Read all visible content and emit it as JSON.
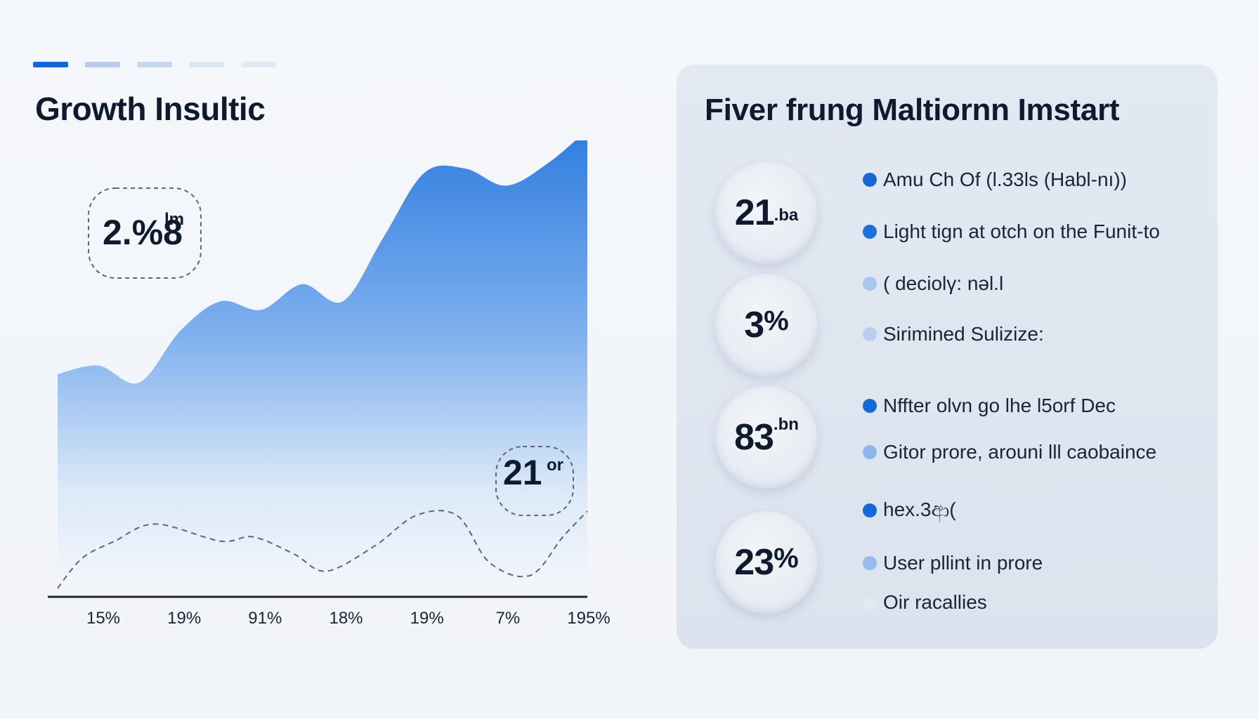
{
  "nav": {
    "tabs": [
      {
        "label": "",
        "state": "active"
      },
      {
        "label": "",
        "state": "inactive"
      },
      {
        "label": "",
        "state": "inactive"
      },
      {
        "label": "",
        "state": "inactive"
      },
      {
        "label": "",
        "state": "inactive"
      }
    ]
  },
  "left": {
    "title": "Growth Insultic"
  },
  "chart_data": {
    "type": "area",
    "title": "Growth Insultic",
    "xlabel": "",
    "ylabel": "",
    "categories": [
      "15%",
      "19%",
      "91%",
      "18%",
      "19%",
      "7%",
      "195%"
    ],
    "ylim": [
      0,
      100
    ],
    "grid": false,
    "colors": {
      "area_top": "#2f7de0",
      "area_bottom": "#f2f6fb",
      "line": "#5e6675",
      "axis": "#1c2438"
    },
    "series": [
      {
        "kind": "area",
        "x": [
          0,
          0.5,
          1,
          1.5,
          2,
          2.5,
          3,
          3.5,
          4,
          4.5,
          5,
          5.5,
          6,
          6.5
        ],
        "values": [
          52,
          54,
          50,
          62,
          69,
          67,
          73,
          69,
          84,
          99,
          100,
          96,
          101,
          109
        ]
      },
      {
        "kind": "dashed-line",
        "x": [
          0,
          0.3,
          0.7,
          1.2,
          2,
          2.4,
          2.9,
          3.3,
          3.9,
          4.4,
          4.9,
          5.3,
          5.8,
          6.2,
          6.5
        ],
        "values": [
          2,
          9,
          13,
          17,
          13,
          14,
          10,
          6,
          12,
          19,
          19,
          8,
          5,
          14,
          20
        ]
      }
    ],
    "annotations": [
      {
        "value": "2.%8",
        "suffix": "lm",
        "style": "dashed-badge"
      },
      {
        "value": "21",
        "suffix": "or",
        "style": "dashed-badge"
      }
    ]
  },
  "panel": {
    "title": "Fiver frung Maltiornn Imstart",
    "stats": [
      {
        "value": "21",
        "unit": ".ba",
        "unit_pos": "sub"
      },
      {
        "value": "3",
        "unit": "%",
        "unit_pos": "pct"
      },
      {
        "value": "83",
        "unit": ".bn",
        "unit_pos": "sup"
      },
      {
        "value": "23",
        "unit": "%",
        "unit_pos": "pct"
      }
    ],
    "bullets": [
      {
        "text": "Amu Ch Of (l.33ls (Habl-nı))",
        "color": "#1668d8"
      },
      {
        "text": "Light tign at otch on the Funit-to",
        "color": "#1d6fdc"
      },
      {
        "text": "( deciolγ: nəl.l",
        "color": "#a9c6ee"
      },
      {
        "text": "Sirimined Sulizize:",
        "color": "#b7cff0"
      },
      {
        "text": "Nffter olvn go lhe l5orf Dec",
        "color": "#1668d8"
      },
      {
        "text": "Gitor prore, arouni lll caobaince",
        "color": "#8cb6ec"
      },
      {
        "text": "hex.3ආ(",
        "color": "#1668d8"
      },
      {
        "text": "User pllint in prore",
        "color": "#93bbee"
      },
      {
        "text": "Oir racallies",
        "color": "#e0e8f4"
      }
    ]
  }
}
